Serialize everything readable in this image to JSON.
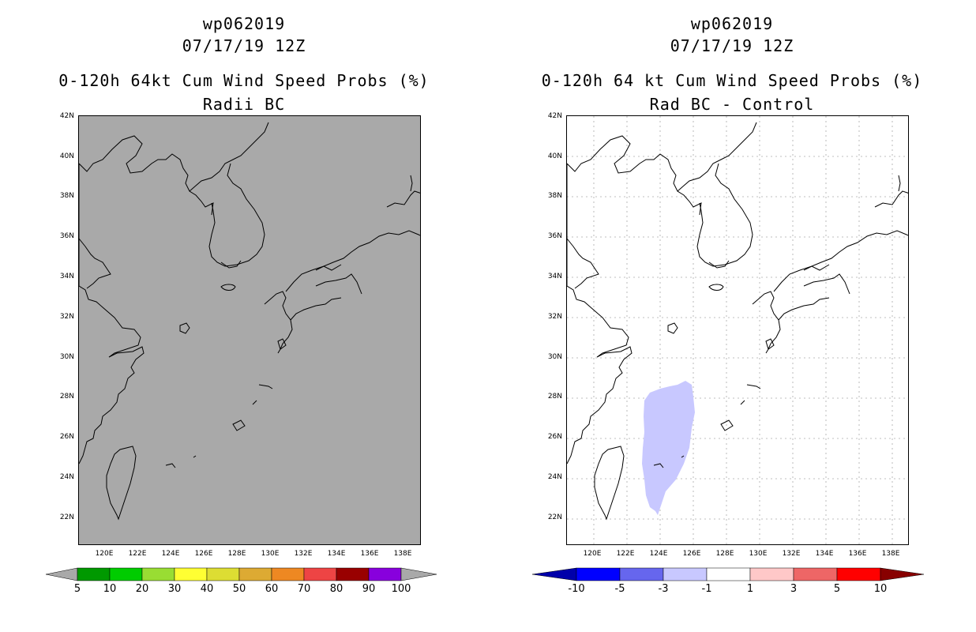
{
  "left": {
    "storm_id": "wp062019",
    "datetime": "07/17/19 12Z",
    "product": "0-120h 64kt Cum Wind Speed Probs (%)",
    "subtitle": "Radii BC",
    "colors": {
      "background": "#a9a9a9",
      "coast": "#000000"
    },
    "colorbar": {
      "labels": [
        "5",
        "10",
        "20",
        "30",
        "40",
        "50",
        "60",
        "70",
        "80",
        "90",
        "100"
      ],
      "colors": [
        "#009900",
        "#00cc00",
        "#99dd33",
        "#ffff33",
        "#dddd33",
        "#ddaa33",
        "#ee8822",
        "#ee4444",
        "#990000",
        "#8800dd"
      ],
      "end_color": "#a9a9a9"
    }
  },
  "right": {
    "storm_id": "wp062019",
    "datetime": "07/17/19 12Z",
    "product": "0-120h 64 kt Cum Wind Speed Probs (%)",
    "subtitle": "Rad BC - Control",
    "colors": {
      "background": "#ffffff",
      "coast": "#000000",
      "grid": "#aaaaaa",
      "diff_fill": "#c8c8ff"
    },
    "colorbar": {
      "labels": [
        "-10",
        "-5",
        "-3",
        "-1",
        "1",
        "3",
        "5",
        "10"
      ],
      "colors": [
        "#0000ff",
        "#6666ee",
        "#c8c8ff",
        "#ffffff",
        "#ffc8c8",
        "#ee6666",
        "#ff0000"
      ],
      "low_end_color": "#0000aa",
      "high_end_color": "#880000"
    }
  },
  "axes": {
    "lat_labels": [
      "42N",
      "40N",
      "38N",
      "36N",
      "34N",
      "32N",
      "30N",
      "28N",
      "26N",
      "24N",
      "22N"
    ],
    "lon_labels": [
      "120E",
      "122E",
      "124E",
      "126E",
      "128E",
      "130E",
      "132E",
      "134E",
      "136E",
      "138E"
    ]
  }
}
